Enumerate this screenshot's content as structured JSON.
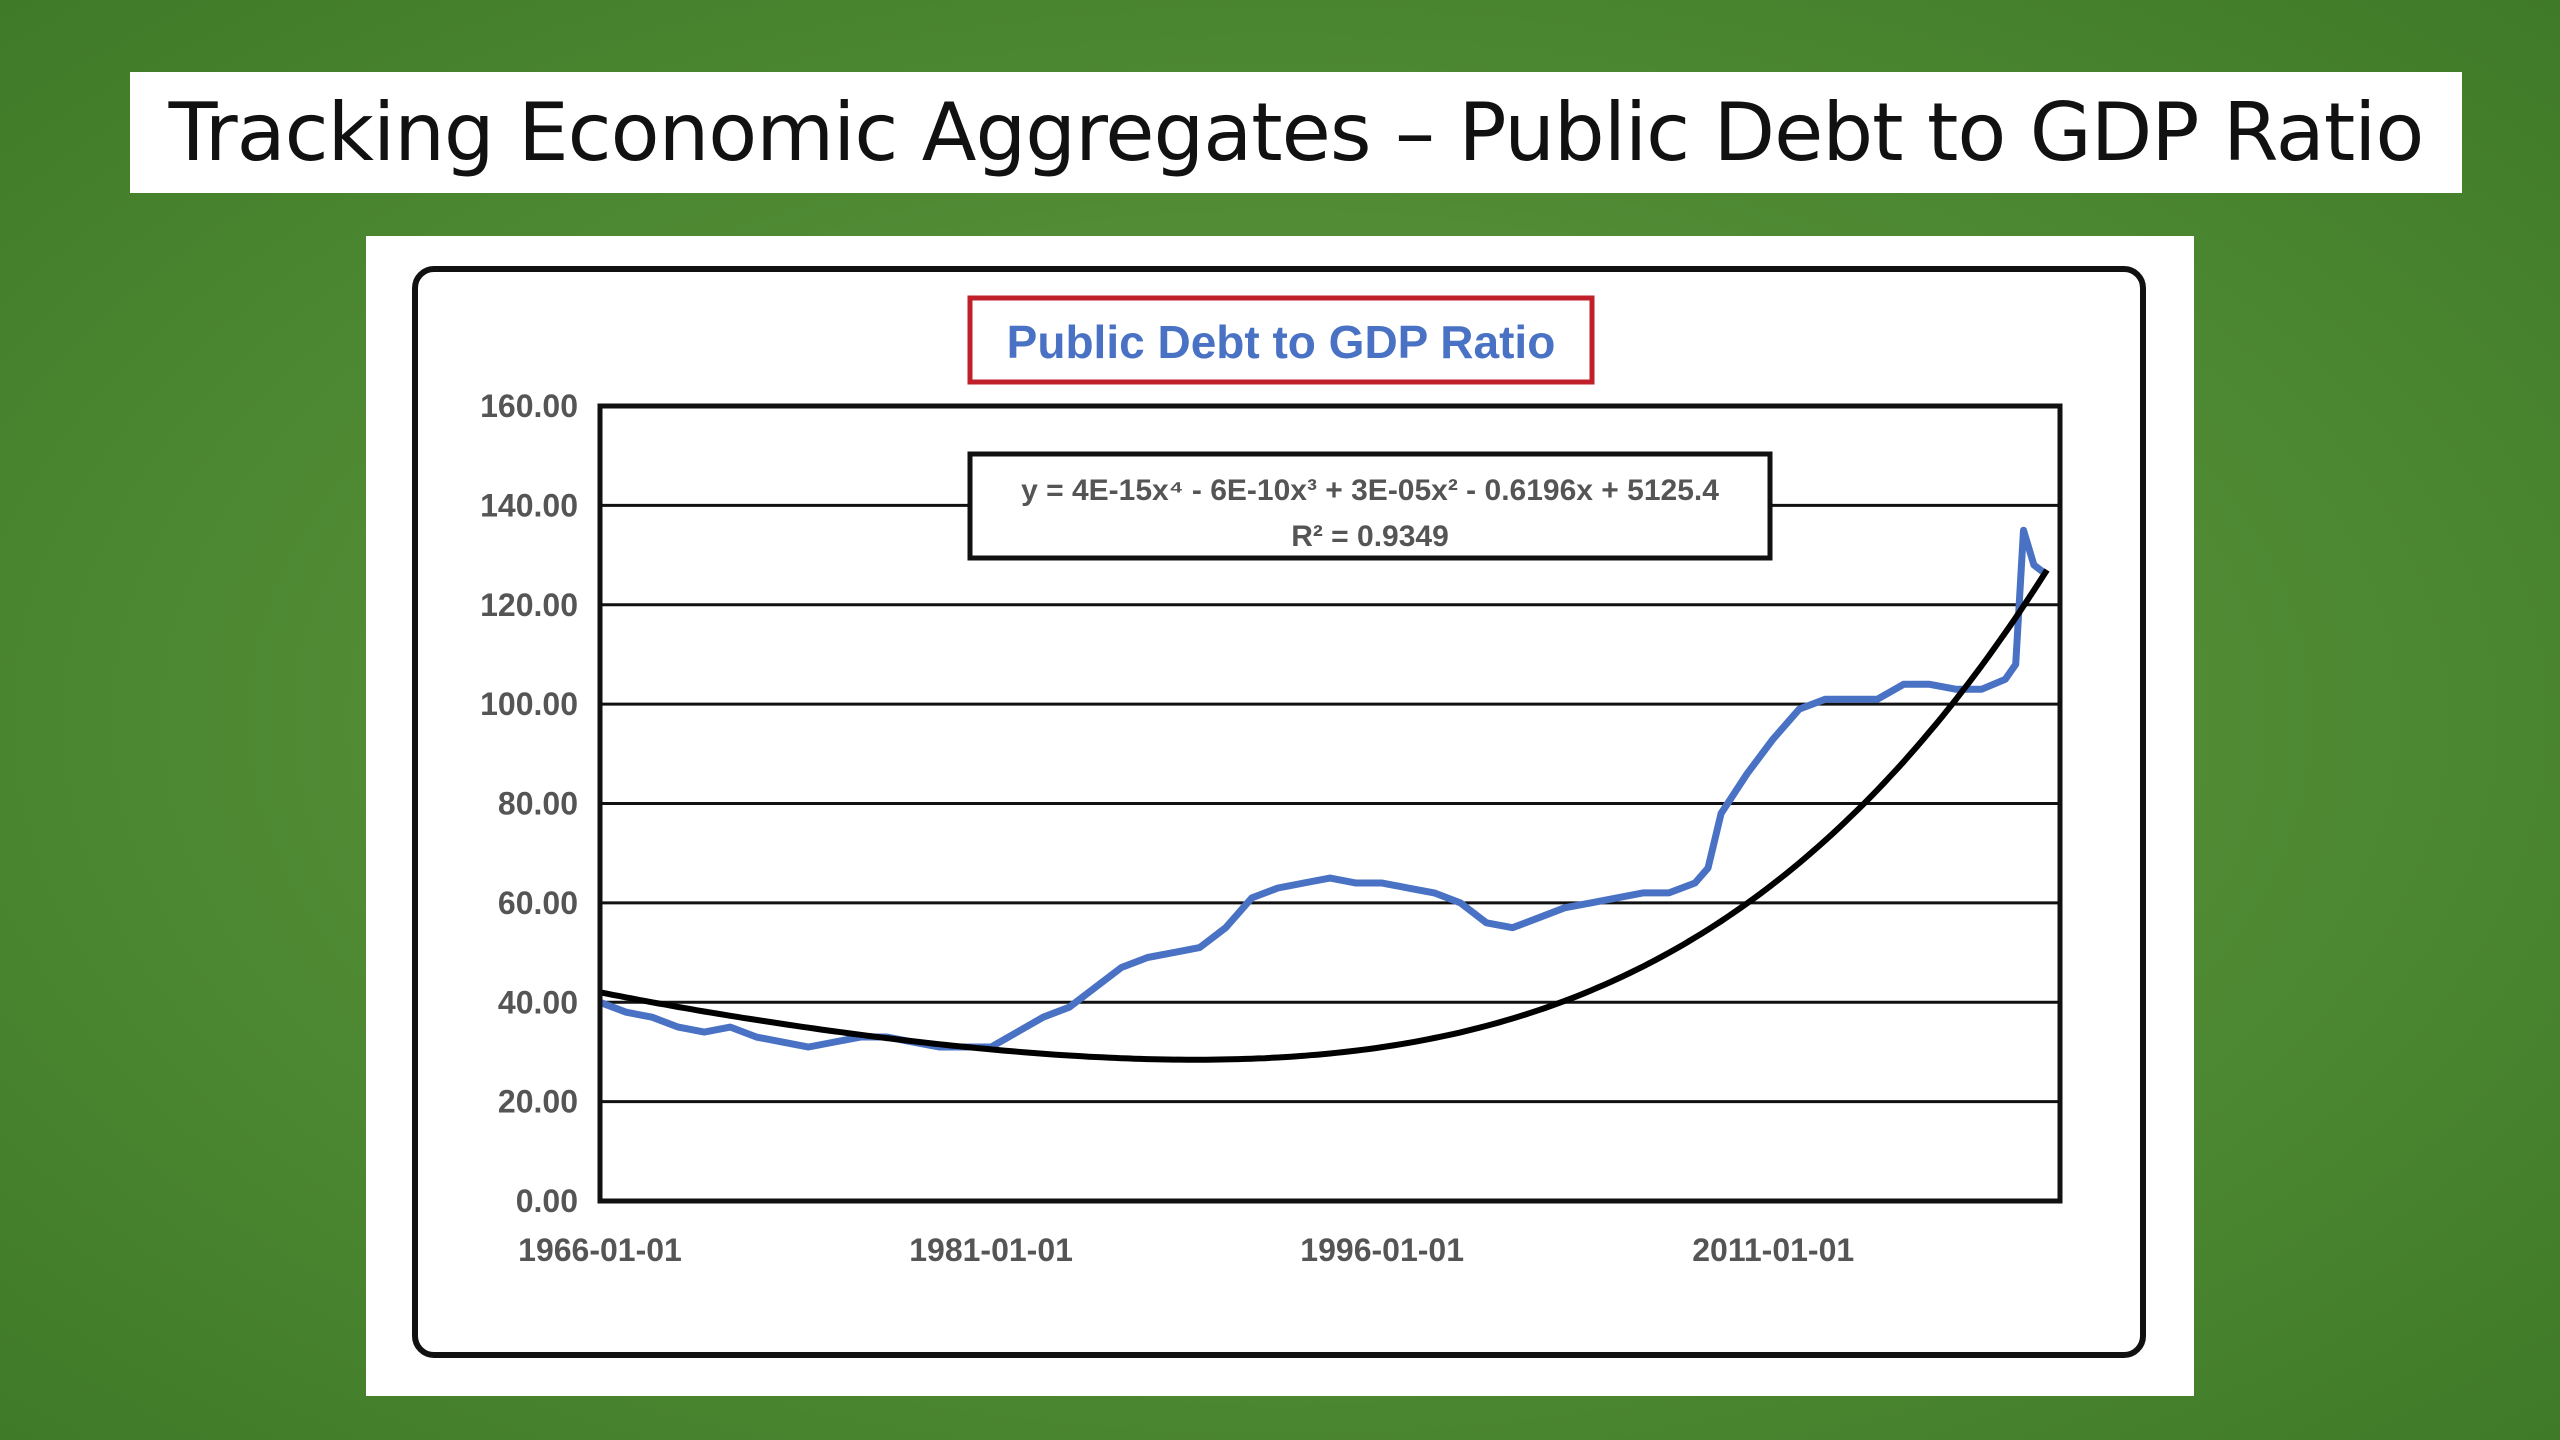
{
  "slide": {
    "title": "Tracking Economic Aggregates – Public Debt to GDP Ratio"
  },
  "colors": {
    "background": "#4f8a33",
    "series_line": "#4a72c4",
    "trend_line": "#000000",
    "title_text": "#4a72c4",
    "title_box_border": "#c0202a"
  },
  "chart_data": {
    "type": "line",
    "title": "Public Debt to GDP Ratio",
    "xlabel": "",
    "ylabel": "",
    "ylim": [
      0,
      160
    ],
    "xlim": [
      1966.0,
      2022.0
    ],
    "grid": true,
    "legend": "none",
    "x_ticks": [
      1966,
      1981,
      1996,
      2011
    ],
    "x_tick_labels": [
      "1966-01-01",
      "1981-01-01",
      "1996-01-01",
      "2011-01-01"
    ],
    "y_ticks": [
      0,
      20,
      40,
      60,
      80,
      100,
      120,
      140,
      160
    ],
    "y_tick_labels": [
      "0.00",
      "20.00",
      "40.00",
      "60.00",
      "80.00",
      "100.00",
      "120.00",
      "140.00",
      "160.00"
    ],
    "trendline_equation": "y = 4E-15x⁴ - 6E-10x³ + 3E-05x² - 0.6196x + 5125.4",
    "trendline_r2": "R² = 0.9349",
    "series": [
      {
        "x": [
          1966.0,
          1967.0,
          1968.0,
          1969.0,
          1970.0,
          1971.0,
          1972.0,
          1973.0,
          1974.0,
          1975.0,
          1976.0,
          1977.0,
          1978.0,
          1979.0,
          1980.0,
          1981.0,
          1982.0,
          1983.0,
          1984.0,
          1985.0,
          1986.0,
          1987.0,
          1988.0,
          1989.0,
          1990.0,
          1991.0,
          1992.0,
          1993.0,
          1994.0,
          1995.0,
          1996.0,
          1997.0,
          1998.0,
          1999.0,
          2000.0,
          2001.0,
          2002.0,
          2003.0,
          2004.0,
          2005.0,
          2006.0,
          2007.0,
          2008.0,
          2008.5,
          2009.0,
          2010.0,
          2011.0,
          2012.0,
          2013.0,
          2014.0,
          2015.0,
          2016.0,
          2017.0,
          2018.0,
          2019.0,
          2019.9,
          2020.3,
          2020.6,
          2021.0,
          2021.5
        ],
        "values": [
          40,
          38,
          37,
          35,
          34,
          35,
          33,
          32,
          31,
          32,
          33,
          33,
          32,
          31,
          31,
          31,
          34,
          37,
          39,
          43,
          47,
          49,
          50,
          51,
          55,
          61,
          63,
          64,
          65,
          64,
          64,
          63,
          62,
          60,
          56,
          55,
          57,
          59,
          60,
          61,
          62,
          62,
          64,
          67,
          78,
          86,
          93,
          99,
          101,
          101,
          101,
          104,
          104,
          103,
          103,
          105,
          108,
          135,
          128,
          126
        ]
      }
    ]
  }
}
